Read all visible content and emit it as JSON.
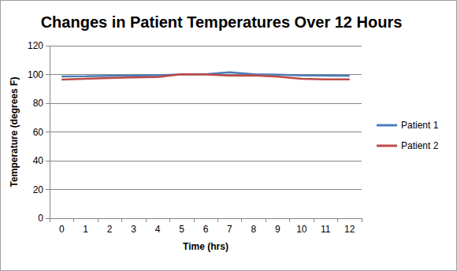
{
  "chart_data": {
    "type": "line",
    "title": "Changes in Patient Temperatures Over 12 Hours",
    "x_label": "Time (hrs)",
    "y_label": "Temperature (degrees F)",
    "categories": [
      "0",
      "1",
      "2",
      "3",
      "4",
      "5",
      "6",
      "7",
      "8",
      "9",
      "10",
      "11",
      "12"
    ],
    "series": [
      {
        "name": "Patient 1",
        "color": "#4a7ebb",
        "values": [
          98.6,
          98.7,
          99.0,
          99.2,
          99.5,
          100.0,
          100.2,
          101.5,
          100.2,
          99.8,
          99.3,
          99.2,
          99.1
        ]
      },
      {
        "name": "Patient 2",
        "color": "#be4b48",
        "values": [
          96.5,
          97.0,
          97.5,
          98.0,
          98.2,
          100.2,
          100.0,
          99.2,
          99.3,
          98.5,
          97.0,
          96.6,
          96.6
        ]
      }
    ],
    "ylim": [
      0,
      120
    ],
    "yticks": [
      0,
      20,
      40,
      60,
      80,
      100,
      120
    ],
    "grid": true,
    "legend": "right"
  }
}
